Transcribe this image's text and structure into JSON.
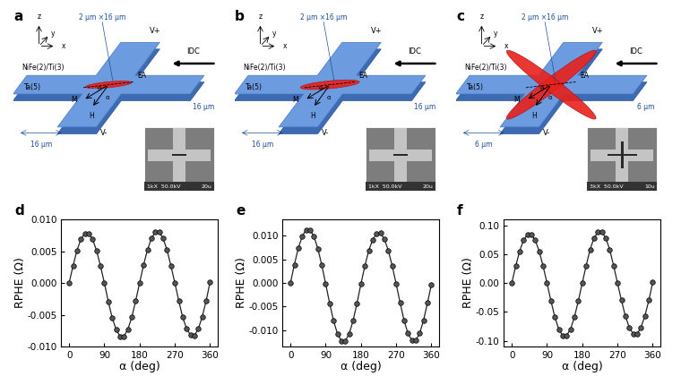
{
  "panels": [
    {
      "label": "a",
      "axes_labels": [
        "x",
        "y",
        "z"
      ],
      "strip_label": "2 μm ×16 μm",
      "voltage_labels": [
        "V+",
        "V-"
      ],
      "layer_labels": [
        "NiFe(2)/Ti(3)",
        "Ta(5)"
      ],
      "vector_labels": [
        "EA",
        "M",
        "H",
        "θ",
        "α"
      ],
      "current_label": "IDC",
      "size_labels": [
        "16 μm",
        "16 μm"
      ],
      "inset": {
        "info": "1kX  50.0kV",
        "scale": "20u"
      },
      "strips": 1
    },
    {
      "label": "b",
      "axes_labels": [
        "x",
        "y",
        "z"
      ],
      "strip_label": "2 μm ×16 μm",
      "voltage_labels": [
        "V+",
        "V-"
      ],
      "layer_labels": [
        "NiFe(2)/Ti(3)",
        "Ta(5)"
      ],
      "vector_labels": [
        "EA",
        "M",
        "H",
        "θ",
        "α"
      ],
      "current_label": "IDC",
      "size_labels": [
        "16 μm",
        "16 μm"
      ],
      "inset": {
        "info": "1kX  50.0kV",
        "scale": "20u"
      },
      "strips": 1
    },
    {
      "label": "c",
      "axes_labels": [
        "x",
        "y",
        "z"
      ],
      "strip_label": "2 μm ×16 μm",
      "voltage_labels": [
        "V+",
        "V-"
      ],
      "layer_labels": [
        "NiFe(2)/Ti(3)",
        "Ta(5)"
      ],
      "vector_labels": [
        "EA",
        "M",
        "H",
        "θ",
        "α"
      ],
      "current_label": "IDC",
      "size_labels": [
        "6 μm",
        "6 μm"
      ],
      "inset": {
        "info": "3kX  50.0kV",
        "scale": "10u"
      },
      "strips": 2
    }
  ],
  "chart_data": [
    {
      "type": "line",
      "annotations": [
        "d"
      ],
      "xlabel": "α (deg)",
      "ylabel": "RPHE (Ω)",
      "color": "#222222",
      "marker": "o",
      "line_style": "solid",
      "x": [
        0,
        10,
        20,
        30,
        40,
        50,
        60,
        70,
        80,
        90,
        100,
        110,
        120,
        130,
        140,
        150,
        160,
        170,
        180,
        190,
        200,
        210,
        220,
        230,
        240,
        250,
        260,
        270,
        280,
        290,
        300,
        310,
        320,
        330,
        340,
        350,
        360
      ],
      "values": [
        0,
        0.0027,
        0.0051,
        0.0069,
        0.0078,
        0.0078,
        0.0069,
        0.0051,
        0.0027,
        0.0,
        -0.0029,
        -0.0055,
        -0.0073,
        -0.0084,
        -0.0084,
        -0.0073,
        -0.0054,
        -0.0028,
        0.0,
        0.0028,
        0.0052,
        0.007,
        0.008,
        0.008,
        0.007,
        0.0052,
        0.0027,
        0.0,
        -0.0028,
        -0.0054,
        -0.0072,
        -0.0082,
        -0.0083,
        -0.0072,
        -0.0053,
        -0.0028,
        0.0002
      ],
      "xlim": [
        -20,
        380
      ],
      "xticks": [
        0,
        90,
        180,
        270,
        360
      ],
      "ylim": [
        -0.01,
        0.01
      ],
      "yticks": [
        {
          "value": -0.01,
          "label": "-0.010"
        },
        {
          "value": -0.005,
          "label": "-0.005"
        },
        {
          "value": 0,
          "label": "0.000"
        },
        {
          "value": 0.005,
          "label": "0.005"
        },
        {
          "value": 0.01,
          "label": "0.010"
        }
      ]
    },
    {
      "type": "line",
      "annotations": [
        "e"
      ],
      "xlabel": "α (deg)",
      "ylabel": "RPHE (Ω)",
      "color": "#222222",
      "marker": "o",
      "line_style": "solid",
      "x": [
        0,
        10,
        20,
        30,
        40,
        50,
        60,
        70,
        80,
        90,
        100,
        110,
        120,
        130,
        140,
        150,
        160,
        170,
        180,
        190,
        200,
        210,
        220,
        230,
        240,
        250,
        260,
        270,
        280,
        290,
        300,
        310,
        320,
        330,
        340,
        350,
        360
      ],
      "values": [
        0,
        0.0039,
        0.0074,
        0.0099,
        0.0113,
        0.0113,
        0.0099,
        0.0073,
        0.0038,
        -0.0002,
        -0.0043,
        -0.008,
        -0.0108,
        -0.0123,
        -0.0123,
        -0.0108,
        -0.008,
        -0.0043,
        -0.0002,
        0.0036,
        0.0069,
        0.0092,
        0.0105,
        0.0106,
        0.0093,
        0.0069,
        0.0036,
        -0.0002,
        -0.0042,
        -0.0079,
        -0.0107,
        -0.0122,
        -0.0122,
        -0.0107,
        -0.0079,
        -0.0042,
        -0.0003
      ],
      "xlim": [
        -20,
        380
      ],
      "xticks": [
        0,
        90,
        180,
        270,
        360
      ],
      "ylim": [
        -0.0135,
        0.0135
      ],
      "yticks": [
        {
          "value": -0.01,
          "label": "-0.010"
        },
        {
          "value": -0.005,
          "label": "-0.005"
        },
        {
          "value": 0,
          "label": "0.000"
        },
        {
          "value": 0.005,
          "label": "0.005"
        },
        {
          "value": 0.01,
          "label": "0.010"
        }
      ]
    },
    {
      "type": "line",
      "annotations": [
        "f"
      ],
      "xlabel": "α (deg)",
      "ylabel": "RPHE (Ω)",
      "color": "#222222",
      "marker": "o",
      "line_style": "solid",
      "x": [
        0,
        10,
        20,
        30,
        40,
        50,
        60,
        70,
        80,
        90,
        100,
        110,
        120,
        130,
        140,
        150,
        160,
        170,
        180,
        190,
        200,
        210,
        220,
        230,
        240,
        250,
        260,
        270,
        280,
        290,
        300,
        310,
        320,
        330,
        340,
        350,
        360
      ],
      "values": [
        0,
        0.029,
        0.055,
        0.074,
        0.084,
        0.084,
        0.074,
        0.055,
        0.029,
        0,
        -0.031,
        -0.059,
        -0.08,
        -0.091,
        -0.091,
        -0.08,
        -0.059,
        -0.031,
        0,
        0.03,
        0.058,
        0.078,
        0.088,
        0.088,
        0.078,
        0.058,
        0.03,
        0,
        -0.03,
        -0.057,
        -0.077,
        -0.088,
        -0.088,
        -0.077,
        -0.057,
        -0.03,
        0.001
      ],
      "xlim": [
        -20,
        380
      ],
      "xticks": [
        0,
        90,
        180,
        270,
        360
      ],
      "ylim": [
        -0.11,
        0.11
      ],
      "yticks": [
        {
          "value": -0.1,
          "label": "-0.10"
        },
        {
          "value": -0.05,
          "label": "-0.05"
        },
        {
          "value": 0,
          "label": "0.00"
        },
        {
          "value": 0.05,
          "label": "0.05"
        },
        {
          "value": 0.1,
          "label": "0.10"
        }
      ]
    }
  ]
}
